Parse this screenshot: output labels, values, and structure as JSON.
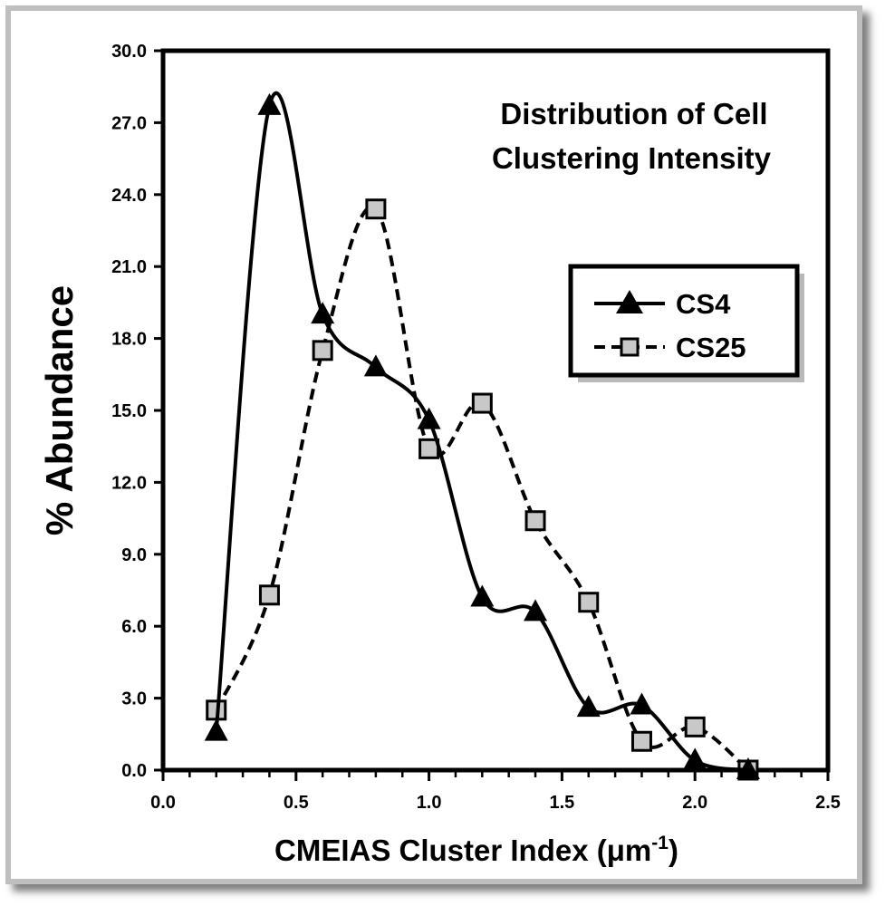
{
  "chart_data": {
    "type": "line",
    "title_lines": [
      "Distribution of Cell",
      "Clustering Intensity"
    ],
    "xlabel": "CMEIAS Cluster Index (μm",
    "xlabel_sup": "-1",
    "xlabel_end": ")",
    "ylabel": "% Abundance",
    "xlim": [
      0.0,
      2.5
    ],
    "ylim": [
      0.0,
      30.0
    ],
    "x_ticks": [
      0.0,
      0.5,
      1.0,
      1.5,
      2.0,
      2.5
    ],
    "x_tick_labels": [
      "0.0",
      "0.5",
      "1.0",
      "1.5",
      "2.0",
      "2.5"
    ],
    "y_ticks": [
      0,
      3,
      6,
      9,
      12,
      15,
      18,
      21,
      24,
      27,
      30
    ],
    "y_tick_labels": [
      "0.0",
      "3.0",
      "6.0",
      "9.0",
      "12.0",
      "15.0",
      "18.0",
      "21.0",
      "24.0",
      "27.0",
      "30.0"
    ],
    "legend_position": "right-middle",
    "series": [
      {
        "name": "CS4",
        "marker": "triangle",
        "line_style": "solid",
        "color": "#000000",
        "x": [
          0.2,
          0.4,
          0.6,
          0.8,
          1.0,
          1.2,
          1.4,
          1.6,
          1.8,
          2.0,
          2.2
        ],
        "values": [
          1.6,
          27.7,
          19.0,
          16.8,
          14.6,
          7.2,
          6.6,
          2.6,
          2.7,
          0.4,
          0.0
        ]
      },
      {
        "name": "CS25",
        "marker": "square",
        "line_style": "dashed",
        "color": "#000000",
        "marker_fill": "#c8c8c8",
        "x": [
          0.2,
          0.4,
          0.6,
          0.8,
          1.0,
          1.2,
          1.4,
          1.6,
          1.8,
          2.0,
          2.2
        ],
        "values": [
          2.5,
          7.3,
          17.5,
          23.4,
          13.4,
          15.3,
          10.4,
          7.0,
          1.2,
          1.8,
          0.0
        ]
      }
    ]
  }
}
